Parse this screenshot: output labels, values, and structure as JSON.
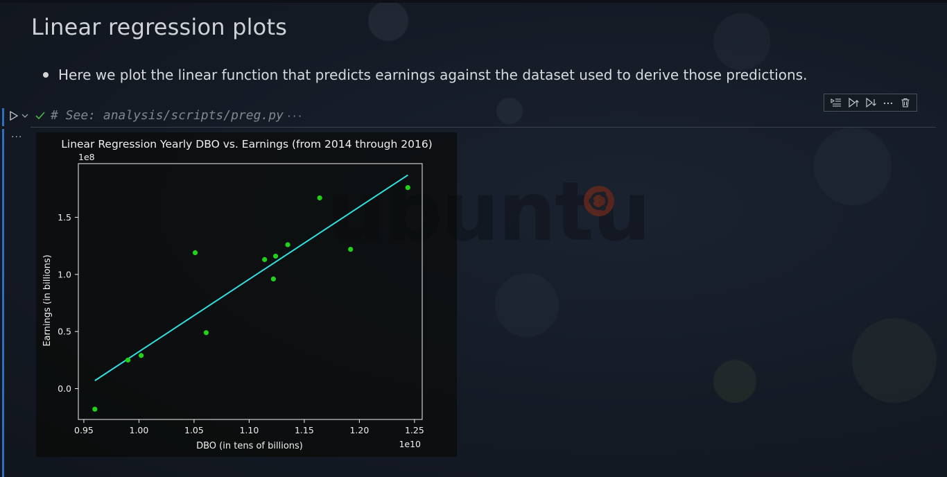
{
  "markdown": {
    "heading": "Linear regression plots",
    "bullet": "Here we plot the linear function that predicts earnings against the dataset used to derive those predictions."
  },
  "cell": {
    "code": "# See: analysis/scripts/preg.py",
    "collapsed_indicator": "···",
    "status": "success",
    "output_menu": "···"
  },
  "toolbar": {
    "icons": [
      "run-by-line-icon",
      "execute-above-icon",
      "execute-below-icon",
      "more-actions-icon",
      "delete-icon"
    ]
  },
  "wallpaper": {
    "logo_text": "ubuntu",
    "accent_color": "#c04a2a"
  },
  "chart_data": {
    "type": "scatter",
    "title": "Linear Regression Yearly DBO vs. Earnings (from 2014 through 2016)",
    "xlabel": "DBO (in tens of billions)",
    "ylabel": "Earnings (in billions)",
    "x_offset_label": "1e10",
    "y_offset_label": "1e8",
    "xlim": [
      0.945,
      1.257
    ],
    "ylim": [
      -0.27,
      1.97
    ],
    "xticks": [
      0.95,
      1.0,
      1.05,
      1.1,
      1.15,
      1.2,
      1.25
    ],
    "xtick_labels": [
      "0.95",
      "1.00",
      "1.05",
      "1.10",
      "1.15",
      "1.20",
      "1.25"
    ],
    "yticks": [
      0.0,
      0.5,
      1.0,
      1.5
    ],
    "ytick_labels": [
      "0.0",
      "0.5",
      "1.0",
      "1.5"
    ],
    "grid": false,
    "series": [
      {
        "type": "scatter",
        "color": "#22d11a",
        "x": [
          0.96,
          0.99,
          1.002,
          1.051,
          1.061,
          1.114,
          1.122,
          1.124,
          1.135,
          1.164,
          1.192,
          1.244
        ],
        "y": [
          -0.18,
          0.25,
          0.29,
          1.19,
          0.49,
          1.13,
          0.96,
          1.16,
          1.26,
          1.67,
          1.22,
          1.76
        ]
      },
      {
        "type": "line",
        "color": "#33e0e0",
        "x": [
          0.96,
          1.244
        ],
        "y": [
          0.07,
          1.87
        ]
      }
    ]
  }
}
